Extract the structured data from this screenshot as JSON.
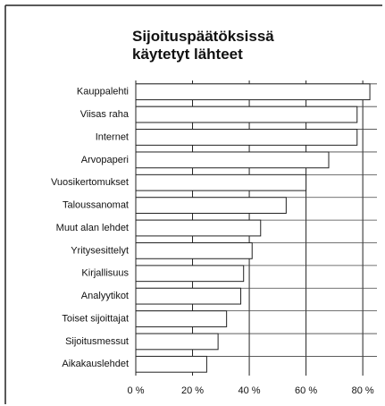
{
  "chart_data": {
    "type": "barh",
    "title": [
      "Sijoituspäätöksissä",
      "käytetyt lähteet"
    ],
    "categories": [
      "Kauppalehti",
      "Viisas raha",
      "Internet",
      "Arvopaperi",
      "Vuosikertomukset",
      "Taloussanomat",
      "Muut alan lehdet",
      "Yritysesittelyt",
      "Kirjallisuus",
      "Analyytikot",
      "Toiset sijoittajat",
      "Sijoitusmessut",
      "Aikakauslehdet"
    ],
    "values": [
      82.5,
      78,
      78,
      68,
      60,
      53,
      44,
      41,
      38,
      37,
      32,
      29,
      25
    ],
    "color": "#ffffff",
    "xlim": [
      0,
      85
    ],
    "xticks": [
      {
        "value": 0,
        "label": "0 %"
      },
      {
        "value": 20,
        "label": "20 %"
      },
      {
        "value": 40,
        "label": "40 %"
      },
      {
        "value": 60,
        "label": "60 %"
      },
      {
        "value": 80,
        "label": "80 %"
      }
    ],
    "grid": true
  }
}
